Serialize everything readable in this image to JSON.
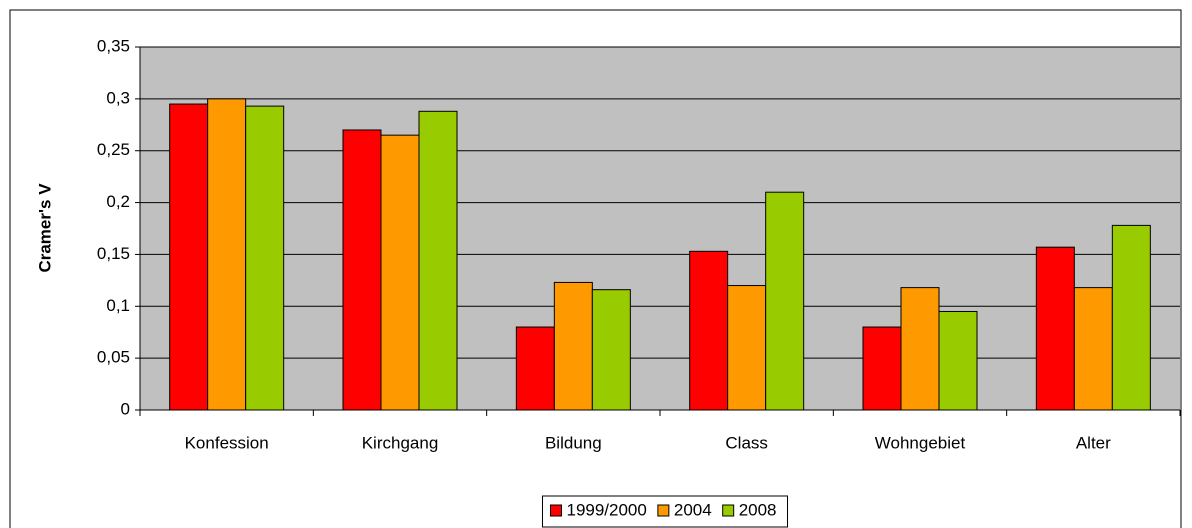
{
  "chart_data": {
    "type": "bar",
    "y_label": "Cramer's V",
    "categories": [
      "Konfession",
      "Kirchgang",
      "Bildung",
      "Class",
      "Wohngebiet",
      "Alter"
    ],
    "series": [
      {
        "name": "1999/2000",
        "color": "#ff0000",
        "values": [
          0.295,
          0.27,
          0.08,
          0.153,
          0.08,
          0.157
        ]
      },
      {
        "name": "2004",
        "color": "#ff9900",
        "values": [
          0.3,
          0.265,
          0.123,
          0.12,
          0.118,
          0.118
        ]
      },
      {
        "name": "2008",
        "color": "#99cc00",
        "values": [
          0.293,
          0.288,
          0.116,
          0.21,
          0.095,
          0.178
        ]
      }
    ],
    "ylim": [
      0,
      0.35
    ],
    "yticks": [
      0,
      {
        "value": 0.05,
        "label": "0,05"
      },
      {
        "value": 0.1,
        "label": "0,1"
      },
      {
        "value": 0.15,
        "label": "0,15"
      },
      {
        "value": 0.2,
        "label": "0,2"
      },
      {
        "value": 0.25,
        "label": "0,25"
      },
      {
        "value": 0.3,
        "label": "0,3"
      },
      {
        "value": 0.35,
        "label": "0,35"
      }
    ],
    "grid": true,
    "legend": "bottom"
  }
}
